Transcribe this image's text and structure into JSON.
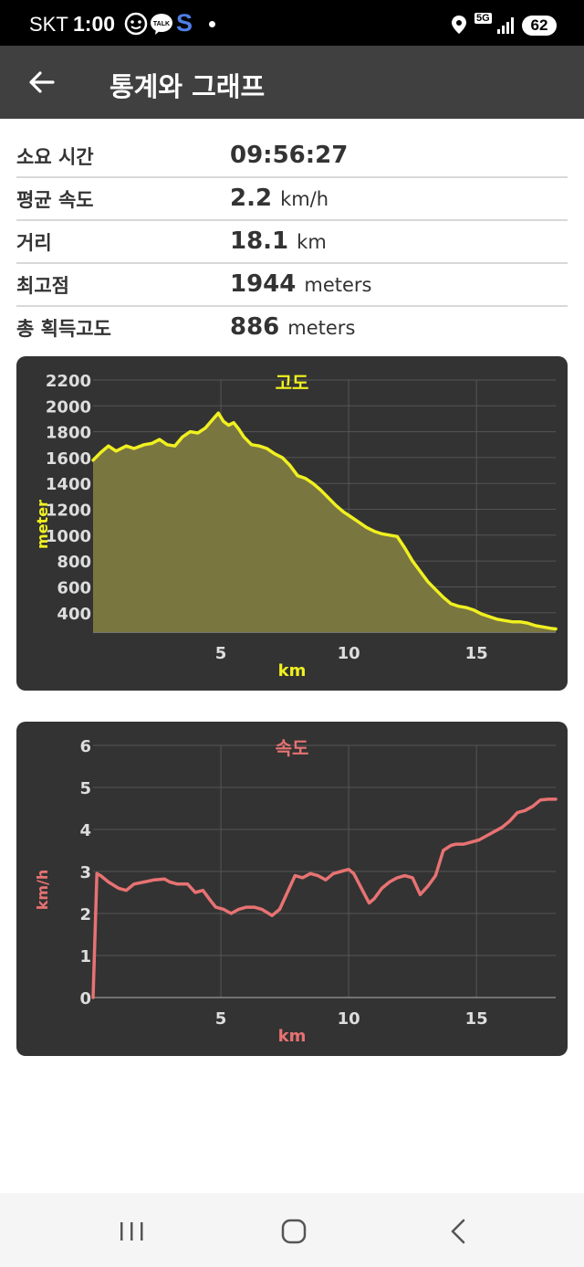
{
  "status": {
    "carrier": "SKT",
    "time": "1:00",
    "s_app": "S",
    "network": "5G",
    "battery": "62",
    "icons": [
      "face-icon",
      "kakao-talk-icon",
      "location-icon",
      "signal-icon"
    ]
  },
  "app_bar": {
    "title": "통계와 그래프",
    "back_icon": "arrow-left-icon"
  },
  "stats": [
    {
      "label": "소요 시간",
      "value": "09:56:27",
      "unit": ""
    },
    {
      "label": "평균 속도",
      "value": "2.2",
      "unit": "km/h"
    },
    {
      "label": "거리",
      "value": "18.1",
      "unit": "km"
    },
    {
      "label": "최고점",
      "value": "1944",
      "unit": "meters"
    },
    {
      "label": "총 획득고도",
      "value": "886",
      "unit": "meters"
    }
  ],
  "nav": {
    "icons": [
      "recent-apps-icon",
      "home-icon",
      "back-icon"
    ]
  },
  "chart_data": [
    {
      "type": "area",
      "title": "고도",
      "xlabel": "km",
      "ylabel": "meter",
      "xlim": [
        0,
        18.1
      ],
      "ylim": [
        250,
        2200
      ],
      "xticks": [
        5,
        10,
        15
      ],
      "yticks": [
        400,
        600,
        800,
        1000,
        1200,
        1400,
        1600,
        1800,
        2000,
        2200
      ],
      "grid": true,
      "color": "#f0f020",
      "fill": "#7a7640",
      "x": [
        0,
        0.3,
        0.6,
        0.9,
        1.3,
        1.6,
        2.0,
        2.3,
        2.6,
        2.9,
        3.2,
        3.5,
        3.8,
        4.1,
        4.4,
        4.7,
        4.9,
        5.1,
        5.3,
        5.5,
        5.7,
        5.9,
        6.2,
        6.5,
        6.8,
        7.1,
        7.4,
        7.7,
        8.0,
        8.3,
        8.6,
        8.9,
        9.2,
        9.5,
        9.8,
        10.1,
        10.4,
        10.7,
        11.0,
        11.3,
        11.6,
        11.9,
        12.2,
        12.5,
        12.8,
        13.1,
        13.4,
        13.7,
        14.0,
        14.3,
        14.6,
        14.9,
        15.2,
        15.5,
        15.8,
        16.1,
        16.4,
        16.7,
        17.0,
        17.3,
        17.6,
        17.9,
        18.1
      ],
      "y": [
        1580,
        1640,
        1690,
        1650,
        1690,
        1670,
        1700,
        1710,
        1740,
        1700,
        1690,
        1760,
        1800,
        1790,
        1830,
        1900,
        1944,
        1880,
        1850,
        1870,
        1820,
        1760,
        1700,
        1690,
        1670,
        1630,
        1600,
        1540,
        1460,
        1440,
        1400,
        1350,
        1290,
        1230,
        1180,
        1140,
        1100,
        1060,
        1030,
        1010,
        1000,
        990,
        900,
        800,
        720,
        640,
        580,
        520,
        470,
        450,
        440,
        420,
        390,
        370,
        350,
        340,
        330,
        330,
        320,
        300,
        290,
        280,
        275
      ]
    },
    {
      "type": "line",
      "title": "속도",
      "xlabel": "km",
      "ylabel": "km/h",
      "xlim": [
        0,
        18.1
      ],
      "ylim": [
        0,
        6
      ],
      "xticks": [
        5,
        10,
        15
      ],
      "yticks": [
        0,
        1,
        2,
        3,
        4,
        5,
        6
      ],
      "grid": true,
      "color": "#e87272",
      "x": [
        0,
        0.15,
        0.3,
        0.6,
        1.0,
        1.3,
        1.6,
        2.0,
        2.4,
        2.8,
        3.0,
        3.3,
        3.7,
        4.0,
        4.3,
        4.6,
        4.8,
        5.1,
        5.4,
        5.7,
        6.0,
        6.3,
        6.6,
        7.0,
        7.3,
        7.6,
        7.9,
        8.2,
        8.5,
        8.8,
        9.1,
        9.4,
        9.7,
        10.0,
        10.2,
        10.5,
        10.8,
        11.0,
        11.3,
        11.6,
        11.9,
        12.2,
        12.5,
        12.8,
        13.1,
        13.4,
        13.7,
        14.0,
        14.2,
        14.5,
        14.8,
        15.1,
        15.4,
        15.7,
        16.0,
        16.3,
        16.6,
        16.9,
        17.2,
        17.5,
        17.8,
        18.1
      ],
      "y": [
        0,
        2.95,
        2.9,
        2.75,
        2.6,
        2.55,
        2.7,
        2.75,
        2.8,
        2.82,
        2.75,
        2.7,
        2.7,
        2.5,
        2.55,
        2.3,
        2.15,
        2.1,
        2.0,
        2.1,
        2.15,
        2.15,
        2.1,
        1.95,
        2.1,
        2.5,
        2.9,
        2.85,
        2.95,
        2.9,
        2.8,
        2.95,
        3.0,
        3.05,
        2.95,
        2.6,
        2.25,
        2.35,
        2.6,
        2.75,
        2.85,
        2.9,
        2.85,
        2.45,
        2.65,
        2.9,
        3.5,
        3.62,
        3.65,
        3.65,
        3.7,
        3.75,
        3.85,
        3.95,
        4.05,
        4.2,
        4.4,
        4.45,
        4.55,
        4.7,
        4.72,
        4.72
      ]
    }
  ]
}
